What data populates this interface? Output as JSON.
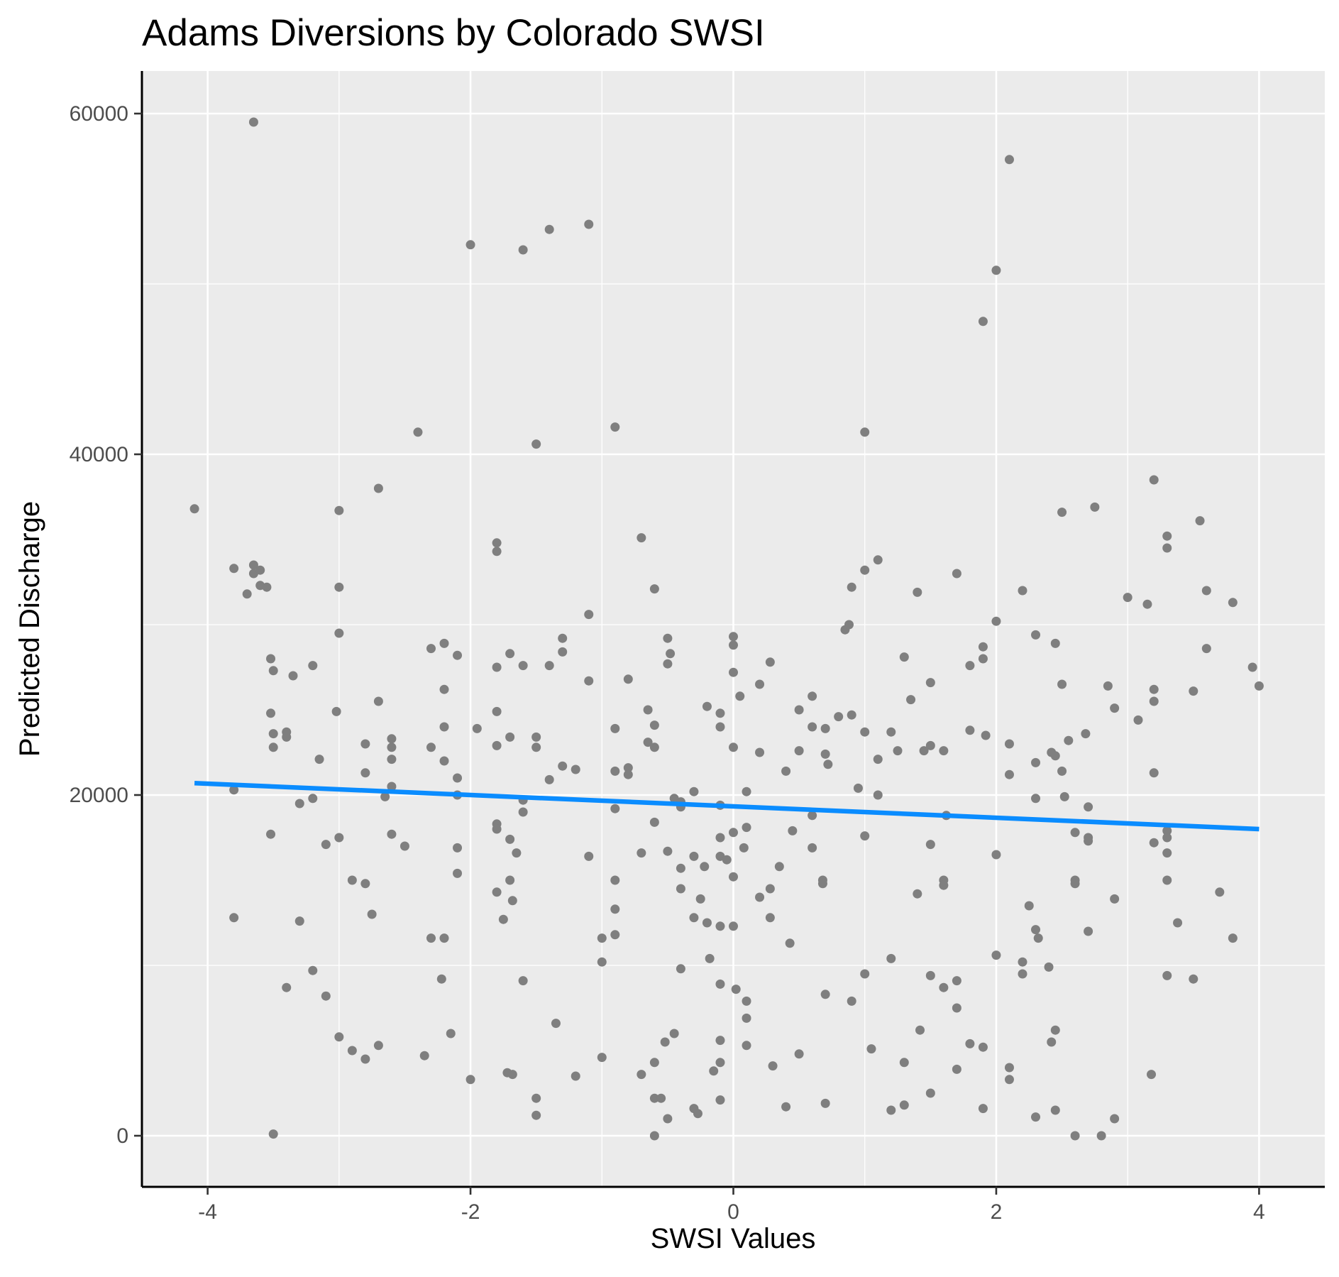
{
  "chart_data": {
    "type": "scatter",
    "title": "Adams Diversions by Colorado SWSI",
    "xlabel": "SWSI Values",
    "ylabel": "Predicted Discharge",
    "xlim": [
      -4.5,
      4.5
    ],
    "ylim": [
      -3000,
      62500
    ],
    "x_ticks": [
      -4,
      -2,
      0,
      2,
      4
    ],
    "x_tick_labels": [
      "-4",
      "-2",
      "0",
      "2",
      "4"
    ],
    "y_ticks": [
      0,
      20000,
      40000,
      60000
    ],
    "y_tick_labels": [
      "0",
      "20000",
      "40000",
      "60000"
    ],
    "grid": true,
    "legend": "none",
    "colors": {
      "points": "#7f7f7f",
      "trend_line": "#0a8cff",
      "panel": "#ebebeb",
      "grid": "#ffffff"
    },
    "trend_line": {
      "x": [
        -4.1,
        4.0
      ],
      "y": [
        20700,
        18000
      ]
    },
    "points": [
      [
        -4.1,
        36800
      ],
      [
        -3.8,
        33300
      ],
      [
        -3.8,
        20300
      ],
      [
        -3.8,
        12800
      ],
      [
        -3.7,
        31800
      ],
      [
        -3.65,
        59500
      ],
      [
        -3.65,
        33500
      ],
      [
        -3.65,
        33000
      ],
      [
        -3.6,
        32300
      ],
      [
        -3.6,
        33200
      ],
      [
        -3.55,
        32200
      ],
      [
        -3.52,
        17700
      ],
      [
        -3.52,
        24800
      ],
      [
        -3.52,
        28000
      ],
      [
        -3.5,
        23600
      ],
      [
        -3.5,
        22800
      ],
      [
        -3.5,
        27300
      ],
      [
        -3.5,
        100
      ],
      [
        -3.4,
        23700
      ],
      [
        -3.4,
        23400
      ],
      [
        -3.4,
        8700
      ],
      [
        -3.35,
        27000
      ],
      [
        -3.3,
        19500
      ],
      [
        -3.3,
        12600
      ],
      [
        -3.2,
        9700
      ],
      [
        -3.2,
        27600
      ],
      [
        -3.2,
        19800
      ],
      [
        -3.15,
        22100
      ],
      [
        -3.1,
        17100
      ],
      [
        -3.1,
        8200
      ],
      [
        -3.0,
        36700
      ],
      [
        -3.0,
        32200
      ],
      [
        -3.0,
        29500
      ],
      [
        -3.0,
        17500
      ],
      [
        -3.0,
        5800
      ],
      [
        -3.02,
        24900
      ],
      [
        -2.9,
        15000
      ],
      [
        -2.9,
        5000
      ],
      [
        -2.8,
        23000
      ],
      [
        -2.8,
        21300
      ],
      [
        -2.8,
        14800
      ],
      [
        -2.8,
        4500
      ],
      [
        -2.75,
        13000
      ],
      [
        -2.7,
        38000
      ],
      [
        -2.7,
        25500
      ],
      [
        -2.7,
        5300
      ],
      [
        -2.65,
        19900
      ],
      [
        -2.6,
        17700
      ],
      [
        -2.6,
        22800
      ],
      [
        -2.6,
        22100
      ],
      [
        -2.6,
        23300
      ],
      [
        -2.6,
        20500
      ],
      [
        -2.5,
        17000
      ],
      [
        -2.4,
        41300
      ],
      [
        -2.35,
        4700
      ],
      [
        -2.3,
        28600
      ],
      [
        -2.3,
        22800
      ],
      [
        -2.3,
        11600
      ],
      [
        -2.2,
        28900
      ],
      [
        -2.2,
        26200
      ],
      [
        -2.2,
        24000
      ],
      [
        -2.2,
        22000
      ],
      [
        -2.2,
        11600
      ],
      [
        -2.22,
        9200
      ],
      [
        -2.1,
        28200
      ],
      [
        -2.1,
        21000
      ],
      [
        -2.1,
        20000
      ],
      [
        -2.1,
        16900
      ],
      [
        -2.1,
        15400
      ],
      [
        -2.15,
        6000
      ],
      [
        -2.0,
        52300
      ],
      [
        -2.0,
        3300
      ],
      [
        -1.95,
        23900
      ],
      [
        -1.8,
        34800
      ],
      [
        -1.8,
        34300
      ],
      [
        -1.8,
        27500
      ],
      [
        -1.8,
        24900
      ],
      [
        -1.8,
        22900
      ],
      [
        -1.8,
        18300
      ],
      [
        -1.8,
        18000
      ],
      [
        -1.8,
        14300
      ],
      [
        -1.75,
        12700
      ],
      [
        -1.72,
        3700
      ],
      [
        -1.7,
        23400
      ],
      [
        -1.7,
        17400
      ],
      [
        -1.7,
        15000
      ],
      [
        -1.68,
        13800
      ],
      [
        -1.68,
        3600
      ],
      [
        -1.7,
        28300
      ],
      [
        -1.65,
        16600
      ],
      [
        -1.6,
        52000
      ],
      [
        -1.6,
        27600
      ],
      [
        -1.6,
        19700
      ],
      [
        -1.6,
        19000
      ],
      [
        -1.6,
        9100
      ],
      [
        -1.5,
        40600
      ],
      [
        -1.5,
        23400
      ],
      [
        -1.5,
        22800
      ],
      [
        -1.5,
        2200
      ],
      [
        -1.5,
        1200
      ],
      [
        -1.4,
        53200
      ],
      [
        -1.4,
        27600
      ],
      [
        -1.4,
        20900
      ],
      [
        -1.35,
        6600
      ],
      [
        -1.3,
        29200
      ],
      [
        -1.3,
        28400
      ],
      [
        -1.3,
        21700
      ],
      [
        -1.2,
        21500
      ],
      [
        -1.2,
        3500
      ],
      [
        -1.1,
        53500
      ],
      [
        -1.1,
        30600
      ],
      [
        -1.1,
        26700
      ],
      [
        -1.1,
        16400
      ],
      [
        -1.0,
        11600
      ],
      [
        -1.0,
        10200
      ],
      [
        -1.0,
        4600
      ],
      [
        -0.9,
        41600
      ],
      [
        -0.9,
        23900
      ],
      [
        -0.9,
        21400
      ],
      [
        -0.9,
        19200
      ],
      [
        -0.9,
        15000
      ],
      [
        -0.9,
        13300
      ],
      [
        -0.9,
        11800
      ],
      [
        -0.8,
        26800
      ],
      [
        -0.8,
        21600
      ],
      [
        -0.8,
        21200
      ],
      [
        -0.7,
        35100
      ],
      [
        -0.7,
        16600
      ],
      [
        -0.7,
        3600
      ],
      [
        -0.65,
        25000
      ],
      [
        -0.65,
        23100
      ],
      [
        -0.6,
        32100
      ],
      [
        -0.6,
        24100
      ],
      [
        -0.6,
        22800
      ],
      [
        -0.6,
        18400
      ],
      [
        -0.6,
        4300
      ],
      [
        -0.6,
        2200
      ],
      [
        -0.6,
        0
      ],
      [
        -0.55,
        2200
      ],
      [
        -0.5,
        29200
      ],
      [
        -0.5,
        27700
      ],
      [
        -0.5,
        16700
      ],
      [
        -0.52,
        5500
      ],
      [
        -0.5,
        1000
      ],
      [
        -0.48,
        28300
      ],
      [
        -0.45,
        19800
      ],
      [
        -0.45,
        6000
      ],
      [
        -0.4,
        19600
      ],
      [
        -0.4,
        19300
      ],
      [
        -0.4,
        15700
      ],
      [
        -0.4,
        14500
      ],
      [
        -0.4,
        9800
      ],
      [
        -0.3,
        20200
      ],
      [
        -0.3,
        16400
      ],
      [
        -0.3,
        12800
      ],
      [
        -0.3,
        1600
      ],
      [
        -0.27,
        1300
      ],
      [
        -0.25,
        13900
      ],
      [
        -0.2,
        25200
      ],
      [
        -0.22,
        15800
      ],
      [
        -0.2,
        12500
      ],
      [
        -0.18,
        10400
      ],
      [
        -0.15,
        3800
      ],
      [
        -0.1,
        24800
      ],
      [
        -0.1,
        24000
      ],
      [
        -0.1,
        19400
      ],
      [
        -0.1,
        17500
      ],
      [
        -0.1,
        16400
      ],
      [
        -0.1,
        12300
      ],
      [
        -0.1,
        8900
      ],
      [
        -0.1,
        5600
      ],
      [
        -0.1,
        4300
      ],
      [
        -0.1,
        2100
      ],
      [
        -0.05,
        16200
      ],
      [
        0.0,
        29300
      ],
      [
        0.0,
        28800
      ],
      [
        0.0,
        27200
      ],
      [
        0.0,
        22800
      ],
      [
        0.0,
        17800
      ],
      [
        0.0,
        15200
      ],
      [
        0.0,
        12300
      ],
      [
        0.02,
        8600
      ],
      [
        0.05,
        25800
      ],
      [
        0.08,
        16900
      ],
      [
        0.1,
        20200
      ],
      [
        0.1,
        18100
      ],
      [
        0.1,
        7900
      ],
      [
        0.1,
        6900
      ],
      [
        0.1,
        5300
      ],
      [
        0.2,
        26500
      ],
      [
        0.2,
        22500
      ],
      [
        0.2,
        14000
      ],
      [
        0.28,
        27800
      ],
      [
        0.28,
        14500
      ],
      [
        0.28,
        12800
      ],
      [
        0.3,
        4100
      ],
      [
        0.35,
        15800
      ],
      [
        0.4,
        21400
      ],
      [
        0.4,
        1700
      ],
      [
        0.43,
        11300
      ],
      [
        0.45,
        17900
      ],
      [
        0.5,
        25000
      ],
      [
        0.5,
        22600
      ],
      [
        0.5,
        4800
      ],
      [
        0.6,
        25800
      ],
      [
        0.6,
        24000
      ],
      [
        0.6,
        18800
      ],
      [
        0.6,
        16900
      ],
      [
        0.68,
        15000
      ],
      [
        0.68,
        14800
      ],
      [
        0.7,
        23900
      ],
      [
        0.7,
        22400
      ],
      [
        0.72,
        21800
      ],
      [
        0.7,
        8300
      ],
      [
        0.7,
        1900
      ],
      [
        0.8,
        24600
      ],
      [
        0.85,
        29700
      ],
      [
        0.88,
        30000
      ],
      [
        0.9,
        32200
      ],
      [
        0.9,
        24700
      ],
      [
        0.9,
        7900
      ],
      [
        0.95,
        20400
      ],
      [
        1.0,
        41300
      ],
      [
        1.0,
        33200
      ],
      [
        1.0,
        23700
      ],
      [
        1.0,
        17600
      ],
      [
        1.0,
        9500
      ],
      [
        1.05,
        5100
      ],
      [
        1.1,
        33800
      ],
      [
        1.1,
        22100
      ],
      [
        1.1,
        20000
      ],
      [
        1.2,
        23700
      ],
      [
        1.2,
        10400
      ],
      [
        1.2,
        1500
      ],
      [
        1.25,
        22600
      ],
      [
        1.3,
        28100
      ],
      [
        1.3,
        4300
      ],
      [
        1.3,
        1800
      ],
      [
        1.35,
        25600
      ],
      [
        1.4,
        31900
      ],
      [
        1.4,
        14200
      ],
      [
        1.42,
        6200
      ],
      [
        1.45,
        22600
      ],
      [
        1.5,
        26600
      ],
      [
        1.5,
        22900
      ],
      [
        1.5,
        17100
      ],
      [
        1.5,
        9400
      ],
      [
        1.5,
        2500
      ],
      [
        1.6,
        22600
      ],
      [
        1.6,
        15000
      ],
      [
        1.6,
        14700
      ],
      [
        1.6,
        8700
      ],
      [
        1.62,
        18800
      ],
      [
        1.7,
        33000
      ],
      [
        1.7,
        9100
      ],
      [
        1.7,
        7500
      ],
      [
        1.7,
        3900
      ],
      [
        1.8,
        27600
      ],
      [
        1.8,
        23800
      ],
      [
        1.8,
        5400
      ],
      [
        1.9,
        47800
      ],
      [
        1.9,
        28700
      ],
      [
        1.9,
        28000
      ],
      [
        1.92,
        23500
      ],
      [
        1.9,
        5200
      ],
      [
        1.9,
        1600
      ],
      [
        2.0,
        50800
      ],
      [
        2.0,
        30200
      ],
      [
        2.0,
        16500
      ],
      [
        2.0,
        10600
      ],
      [
        2.1,
        57300
      ],
      [
        2.1,
        23000
      ],
      [
        2.1,
        21200
      ],
      [
        2.1,
        4000
      ],
      [
        2.1,
        3300
      ],
      [
        2.2,
        32000
      ],
      [
        2.2,
        10200
      ],
      [
        2.2,
        9500
      ],
      [
        2.25,
        13500
      ],
      [
        2.3,
        29400
      ],
      [
        2.3,
        21900
      ],
      [
        2.3,
        19800
      ],
      [
        2.3,
        12100
      ],
      [
        2.32,
        11600
      ],
      [
        2.3,
        1100
      ],
      [
        2.4,
        9900
      ],
      [
        2.42,
        22500
      ],
      [
        2.45,
        22300
      ],
      [
        2.42,
        5500
      ],
      [
        2.45,
        6200
      ],
      [
        2.45,
        28900
      ],
      [
        2.45,
        1500
      ],
      [
        2.5,
        36600
      ],
      [
        2.5,
        26500
      ],
      [
        2.5,
        21400
      ],
      [
        2.52,
        19900
      ],
      [
        2.55,
        23200
      ],
      [
        2.6,
        17800
      ],
      [
        2.6,
        15000
      ],
      [
        2.6,
        14800
      ],
      [
        2.6,
        0
      ],
      [
        2.68,
        23600
      ],
      [
        2.7,
        19300
      ],
      [
        2.7,
        17500
      ],
      [
        2.7,
        17300
      ],
      [
        2.7,
        12000
      ],
      [
        2.75,
        36900
      ],
      [
        2.8,
        0
      ],
      [
        2.85,
        26400
      ],
      [
        2.9,
        25100
      ],
      [
        2.9,
        13900
      ],
      [
        2.9,
        1000
      ],
      [
        3.0,
        31600
      ],
      [
        3.08,
        24400
      ],
      [
        3.15,
        31200
      ],
      [
        3.18,
        3600
      ],
      [
        3.2,
        38500
      ],
      [
        3.2,
        26200
      ],
      [
        3.2,
        25500
      ],
      [
        3.2,
        21300
      ],
      [
        3.2,
        17200
      ],
      [
        3.3,
        35200
      ],
      [
        3.3,
        34500
      ],
      [
        3.3,
        17900
      ],
      [
        3.3,
        17500
      ],
      [
        3.3,
        16600
      ],
      [
        3.3,
        15000
      ],
      [
        3.3,
        9400
      ],
      [
        3.38,
        12500
      ],
      [
        3.5,
        26100
      ],
      [
        3.5,
        9200
      ],
      [
        3.55,
        36100
      ],
      [
        3.6,
        32000
      ],
      [
        3.6,
        28600
      ],
      [
        3.7,
        14300
      ],
      [
        3.8,
        31300
      ],
      [
        3.8,
        11600
      ],
      [
        3.95,
        27500
      ],
      [
        4.0,
        26400
      ]
    ]
  }
}
